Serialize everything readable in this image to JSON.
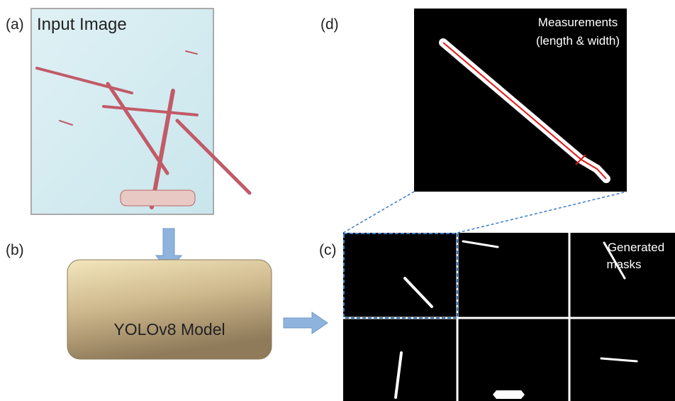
{
  "labels": {
    "a": "(a)",
    "b": "(b)",
    "c": "(c)",
    "d": "(d)"
  },
  "input_image": {
    "title": "Input Image"
  },
  "model": {
    "label": "YOLOv8 Model"
  },
  "measurements": {
    "line1": "Measurements",
    "line2": "(length & width)"
  },
  "masks": {
    "line1": "Generated",
    "line2": "masks"
  }
}
